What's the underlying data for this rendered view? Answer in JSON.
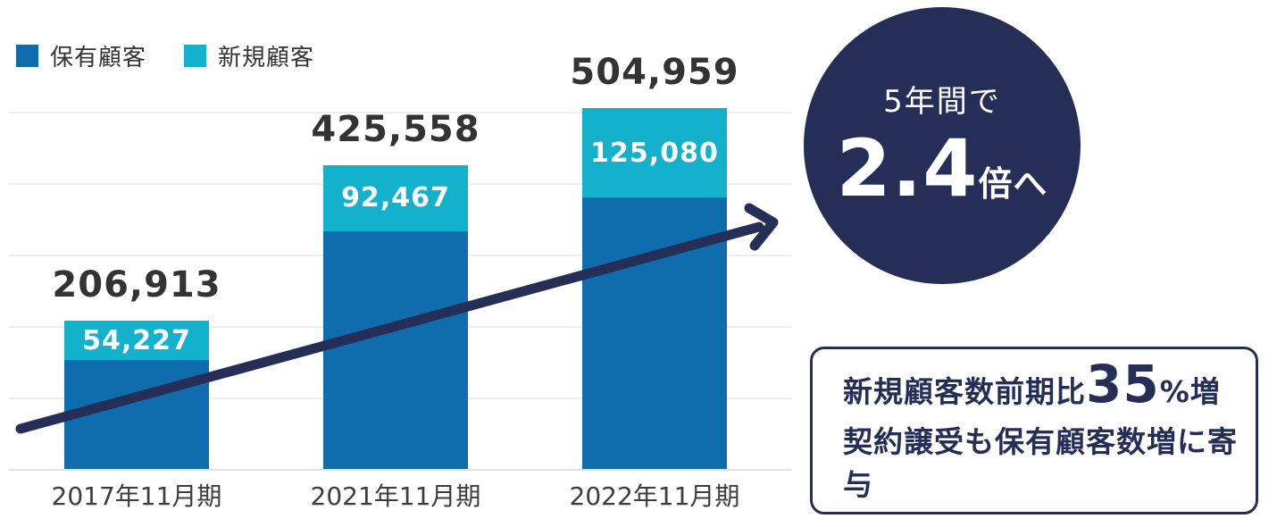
{
  "chart_data": {
    "type": "bar",
    "stacked": true,
    "title": "",
    "categories": [
      "2017年11月期",
      "2021年11月期",
      "2022年11月期"
    ],
    "series": [
      {
        "name": "保有顧客",
        "color": "#0f6cad",
        "values": [
          152686,
          333091,
          379879
        ]
      },
      {
        "name": "新規顧客",
        "color": "#14b1cd",
        "values": [
          54227,
          92467,
          125080
        ]
      }
    ],
    "totals": [
      206913,
      425558,
      504959
    ],
    "total_labels": [
      "206,913",
      "425,558",
      "504,959"
    ],
    "new_labels": [
      "54,227",
      "92,467",
      "125,080"
    ],
    "ylim": [
      0,
      500000
    ],
    "y_grid_step": 100000,
    "grid": "horizontal-light-gray",
    "y_tick_labels_visible": false,
    "legend_position": "top-left"
  },
  "badge": {
    "line1": "5年間で",
    "value": "2.4",
    "suffix": "倍へ",
    "bg": "#242e57",
    "text_color": "#ffffff"
  },
  "callout": {
    "line1_prefix": "新規顧客数前期比",
    "line1_value": "35",
    "line1_suffix": "%増",
    "line2": "契約譲受も保有顧客数増に寄与",
    "border_color": "#242e57",
    "text_color": "#242e57"
  },
  "arrow": {
    "meaning": "upward-trend",
    "color": "#242e57"
  },
  "colors": {
    "existing_customers": "#0f6cad",
    "new_customers": "#14b1cd",
    "navy_accent": "#242e57",
    "label_text": "#333333",
    "gridline": "#eeeeee"
  }
}
